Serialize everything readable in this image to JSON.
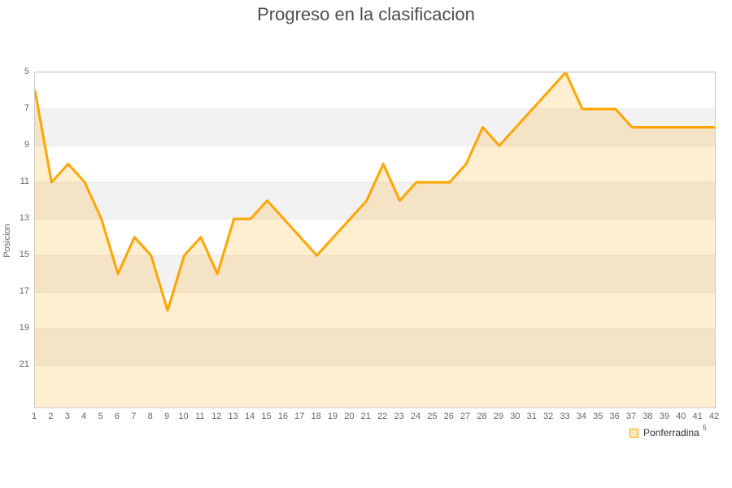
{
  "chart_data": {
    "type": "area",
    "title": "Progreso en la clasificacion",
    "xlabel": "",
    "ylabel": "Posicion",
    "x": [
      1,
      2,
      3,
      4,
      5,
      6,
      7,
      8,
      9,
      10,
      11,
      12,
      13,
      14,
      15,
      16,
      17,
      18,
      19,
      20,
      21,
      22,
      23,
      24,
      25,
      26,
      27,
      28,
      29,
      30,
      31,
      32,
      33,
      34,
      35,
      36,
      37,
      38,
      39,
      40,
      41,
      42
    ],
    "series": [
      {
        "name": "Ponferradina",
        "values": [
          6,
          11,
          10,
          11,
          13,
          16,
          14,
          15,
          18,
          15,
          14,
          16,
          13,
          13,
          12,
          13,
          14,
          15,
          14,
          13,
          12,
          10,
          12,
          11,
          11,
          11,
          10,
          8,
          9,
          8,
          7,
          6,
          5,
          7,
          7,
          7,
          8,
          8,
          8,
          8,
          8,
          8
        ]
      }
    ],
    "y_ticks": [
      5,
      7,
      9,
      11,
      13,
      15,
      17,
      19,
      21
    ],
    "y_min": 5,
    "y_max": 23.3,
    "y_inverted": true,
    "grid": "horizontal-bands",
    "legend_position": "bottom-right",
    "line_color": "#ffa500",
    "fill_color": "rgba(255,165,0,0.19)",
    "band_colors": [
      "#ffffff",
      "#f2f2f2"
    ],
    "grid_color": "#e6e6e6",
    "border_color": "#cccccc",
    "title_color": "#4d4d4d",
    "tick_color": "#666666"
  },
  "legend": {
    "label": "Ponferradina",
    "superscript": "5",
    "swatch_fill": "#fbe6c3",
    "swatch_border": "#ffa500"
  }
}
